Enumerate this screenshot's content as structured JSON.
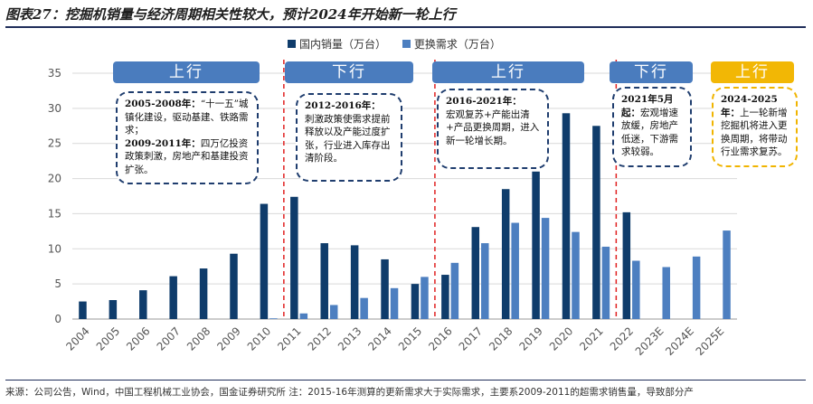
{
  "figure_title": "图表27：挖掘机销量与经济周期相关性较大，预计2024年开始新一轮上行",
  "source_text": "来源：公司公告，Wind，中国工程机械工业协会，国金证券研究所  注：2015-16年测算的更新需求大于实际需求，主要系2009-2011的超需求销售量，导致部分产",
  "colors": {
    "domestic": "#0f3c6b",
    "replacement": "#4d7fc0",
    "badge_blue": "#4a7cbe",
    "badge_yellow": "#f2b705",
    "divider": "#e02020",
    "grid": "#d9d9d9"
  },
  "phases": [
    {
      "label": "上行",
      "color": "blue"
    },
    {
      "label": "下行",
      "color": "blue"
    },
    {
      "label": "上行",
      "color": "blue"
    },
    {
      "label": "下行",
      "color": "blue"
    },
    {
      "label": "上行",
      "color": "yellow"
    }
  ],
  "notes": [
    {
      "head": "2005-2008年：",
      "body": "“十一五”城镇化建设，驱动基建、铁路需求；",
      "head2": "2009-2011年：",
      "body2": "四万亿投资政策刺激，房地产和基建投资扩张。"
    },
    {
      "head": "2012-2016年：",
      "body": "刺激政策使需求提前释放以及产能过度扩张，行业进入库存出清阶段。",
      "head2": "",
      "body2": ""
    },
    {
      "head": "2016-2021年：",
      "body": "宏观复苏+产能出清+产品更换周期，进入新一轮增长期。",
      "head2": "",
      "body2": ""
    },
    {
      "head": "2021年5月起：",
      "body": "宏观增速放缓，房地产低迷，下游需求较弱。",
      "head2": "",
      "body2": ""
    },
    {
      "head": "2024-2025年：",
      "body": "上一轮新增挖掘机将进入更换周期，将带动行业需求复苏。",
      "head2": "",
      "body2": ""
    }
  ],
  "chart_data": {
    "type": "bar",
    "categories": [
      "2004",
      "2005",
      "2006",
      "2007",
      "2008",
      "2009",
      "2010",
      "2011",
      "2012",
      "2013",
      "2014",
      "2015",
      "2016",
      "2017",
      "2018",
      "2019",
      "2020",
      "2021",
      "2022",
      "2023E",
      "2024E",
      "2025E"
    ],
    "series": [
      {
        "name": "国内销量（万台）",
        "values": [
          2.5,
          2.7,
          4.1,
          6.1,
          7.2,
          9.3,
          16.4,
          17.4,
          10.8,
          10.5,
          8.5,
          5.0,
          6.3,
          13.1,
          18.5,
          21.0,
          29.3,
          27.5,
          15.2,
          null,
          null,
          null
        ]
      },
      {
        "name": "更换需求（万台）",
        "values": [
          null,
          null,
          null,
          null,
          null,
          null,
          0.1,
          0.8,
          2.0,
          3.0,
          4.4,
          6.0,
          8.0,
          10.8,
          13.7,
          14.4,
          12.4,
          10.3,
          8.3,
          7.4,
          8.9,
          12.6
        ]
      }
    ],
    "ylim": [
      0,
      35
    ],
    "yticks": [
      0,
      5,
      10,
      15,
      20,
      25,
      30,
      35
    ],
    "grid": true,
    "legend": "top",
    "dividers_between": [
      "2010|2011",
      "2015|2016",
      "2021|2022"
    ]
  }
}
